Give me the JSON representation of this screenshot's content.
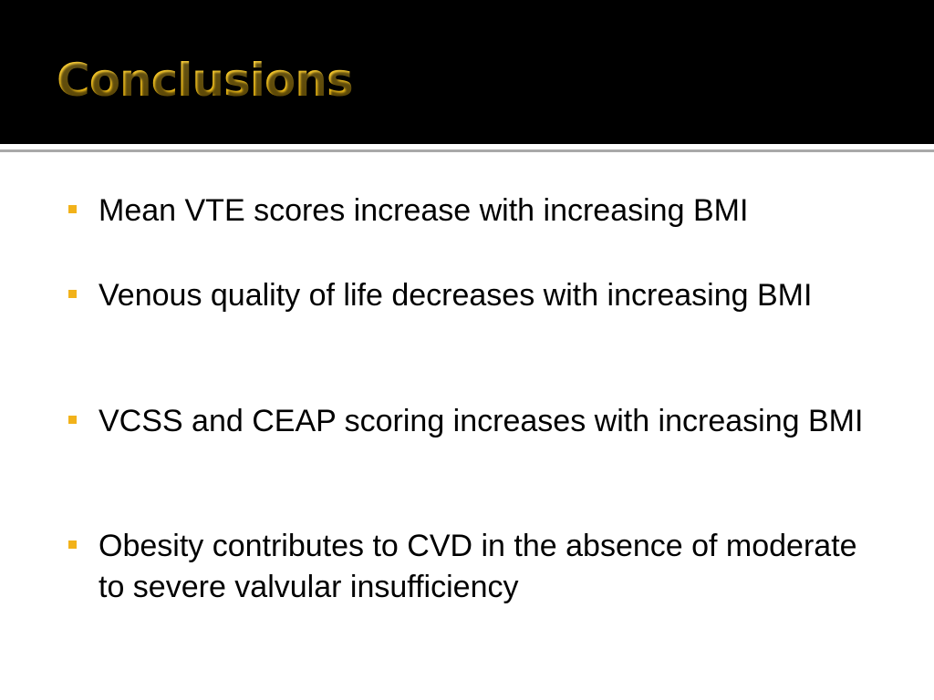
{
  "slide": {
    "title": "Conclusions",
    "title_color": "#f2c01e",
    "bullet_color": "#f2b21a",
    "header_background": "#000000",
    "bullets": [
      "Mean VTE scores increase with increasing BMI",
      "Venous quality of life decreases with increasing BMI",
      "VCSS and CEAP scoring increases with increasing BMI",
      "Obesity contributes to CVD in the absence of moderate to severe valvular insufficiency"
    ]
  }
}
